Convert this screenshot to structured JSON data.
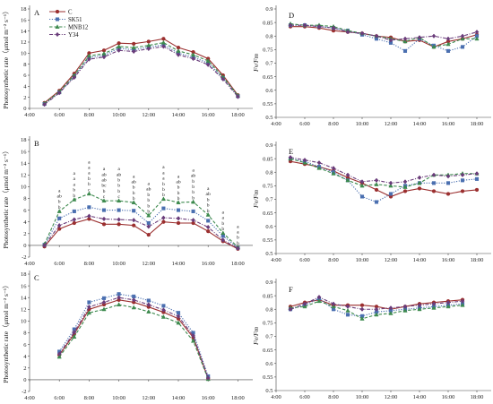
{
  "figure": {
    "legend": [
      "C",
      "SK51",
      "MNB12",
      "Y34"
    ],
    "colors": {
      "C": "#9b2f2f",
      "SK51": "#4a6fb0",
      "MNB12": "#3d8a4e",
      "Y34": "#6a3c7a"
    },
    "markers": {
      "C": "circle",
      "SK51": "square",
      "MNB12": "triangle",
      "Y34": "diamond"
    },
    "line_styles": {
      "C": "solid",
      "SK51": "dotted",
      "MNB12": "dashed",
      "Y34": "dashdot"
    }
  },
  "chart_data": [
    {
      "panel": "A",
      "type": "line",
      "ylabel": "Photosynthetic rate（μmol m⁻² s⁻¹）",
      "ylim": [
        0,
        18
      ],
      "yticks": [
        0,
        2,
        4,
        6,
        8,
        10,
        12,
        14,
        16,
        18
      ],
      "xlim": [
        4,
        19
      ],
      "xtick_labels": [
        "4:00",
        "6:00",
        "8:00",
        "10:00",
        "12:00",
        "14:00",
        "16:00",
        "18:00"
      ],
      "x": [
        5,
        6,
        7,
        8,
        9,
        10,
        11,
        12,
        13,
        14,
        15,
        16,
        17,
        18
      ],
      "series": [
        {
          "name": "C",
          "values": [
            1.0,
            3.2,
            6.3,
            10.0,
            10.5,
            11.8,
            11.7,
            12.1,
            12.6,
            11.0,
            10.2,
            9.0,
            6.0,
            2.4
          ]
        },
        {
          "name": "SK51",
          "values": [
            0.8,
            2.9,
            5.8,
            9.2,
            9.6,
            10.9,
            10.6,
            11.1,
            11.5,
            10.0,
            9.3,
            8.2,
            5.5,
            2.2
          ]
        },
        {
          "name": "MNB12",
          "values": [
            0.9,
            3.0,
            6.0,
            9.5,
            9.9,
            11.2,
            11.0,
            11.4,
            11.9,
            10.4,
            9.7,
            8.6,
            5.7,
            2.3
          ]
        },
        {
          "name": "Y34",
          "values": [
            0.7,
            2.8,
            5.6,
            8.9,
            9.3,
            10.5,
            10.3,
            10.8,
            11.2,
            9.7,
            9.0,
            7.9,
            5.3,
            2.1
          ]
        }
      ]
    },
    {
      "panel": "B",
      "type": "line",
      "ylabel": "Photosynthetic rate（μmol m⁻² s⁻¹）",
      "ylim": [
        -2,
        18
      ],
      "yticks": [
        -2,
        0,
        2,
        4,
        6,
        8,
        10,
        12,
        14,
        16,
        18
      ],
      "xlim": [
        4,
        19
      ],
      "xtick_labels": [
        "4:00",
        "6:00",
        "8:00",
        "10:00",
        "12:00",
        "14:00",
        "16:00",
        "18:00"
      ],
      "x": [
        5,
        6,
        7,
        8,
        9,
        10,
        11,
        12,
        13,
        14,
        15,
        16,
        17,
        18
      ],
      "series": [
        {
          "name": "C",
          "values": [
            -0.2,
            2.8,
            3.8,
            4.5,
            3.6,
            3.6,
            3.4,
            1.8,
            4.0,
            3.8,
            3.8,
            2.4,
            0.7,
            -0.6
          ]
        },
        {
          "name": "SK51",
          "values": [
            0.1,
            4.6,
            5.8,
            6.5,
            6.0,
            6.0,
            5.9,
            3.8,
            6.3,
            6.0,
            5.8,
            4.2,
            1.6,
            -0.4
          ]
        },
        {
          "name": "MNB12",
          "values": [
            0.2,
            5.8,
            7.8,
            8.8,
            7.6,
            7.6,
            7.3,
            5.1,
            7.9,
            7.3,
            7.4,
            5.2,
            2.1,
            -0.3
          ]
        },
        {
          "name": "Y34",
          "values": [
            0.0,
            3.4,
            4.4,
            5.0,
            4.5,
            4.4,
            4.3,
            3.2,
            4.7,
            4.6,
            4.3,
            3.1,
            0.9,
            -0.5
          ]
        }
      ],
      "significance_letters": [
        {
          "x": 6,
          "letters": [
            "a",
            "ab",
            "b",
            "b"
          ]
        },
        {
          "x": 7,
          "letters": [
            "a",
            "a",
            "a",
            "b",
            "b"
          ]
        },
        {
          "x": 8,
          "letters": [
            "a",
            "a",
            "a",
            "b",
            "b",
            "c"
          ]
        },
        {
          "x": 9,
          "letters": [
            "a",
            "ab",
            "ab",
            "bc",
            "b",
            "c"
          ]
        },
        {
          "x": 10,
          "letters": [
            "a",
            "ab",
            "b",
            "b",
            "b",
            "c"
          ]
        },
        {
          "x": 11,
          "letters": [
            "a",
            "ab",
            "b",
            "b",
            "b"
          ]
        },
        {
          "x": 12,
          "letters": [
            "a",
            "ab",
            "b",
            "b",
            "b",
            "b"
          ]
        },
        {
          "x": 13,
          "letters": [
            "a",
            "a",
            "a",
            "b",
            "b",
            "b"
          ]
        },
        {
          "x": 14,
          "letters": [
            "a",
            "ab",
            "b",
            "b",
            "b"
          ]
        },
        {
          "x": 15,
          "letters": [
            "a",
            "ab",
            "b",
            "b",
            "b",
            "b"
          ]
        },
        {
          "x": 16,
          "letters": [
            "a",
            "ab",
            "b",
            "b",
            "b"
          ]
        },
        {
          "x": 17,
          "letters": [
            "a",
            "a",
            "b",
            "b"
          ]
        },
        {
          "x": 18,
          "letters": [
            "a",
            "a",
            "b",
            "b"
          ]
        }
      ]
    },
    {
      "panel": "C",
      "type": "line",
      "ylabel": "Photosynthetic rate（μmol m⁻² s⁻¹）",
      "ylim": [
        -2,
        18
      ],
      "yticks": [
        -2,
        0,
        2,
        4,
        6,
        8,
        10,
        12,
        14,
        16,
        18
      ],
      "xlim": [
        4,
        19
      ],
      "xtick_labels": [
        "4:00",
        "6:00",
        "8:00",
        "10:00",
        "12:00",
        "14:00",
        "16:00",
        "18:00"
      ],
      "x": [
        6,
        7,
        8,
        9,
        10,
        11,
        12,
        13,
        14,
        15,
        16
      ],
      "series": [
        {
          "name": "C",
          "values": [
            4.2,
            7.8,
            12.0,
            12.8,
            13.6,
            13.2,
            12.4,
            11.5,
            10.4,
            7.2,
            0.2
          ]
        },
        {
          "name": "SK51",
          "values": [
            4.8,
            8.6,
            13.2,
            13.9,
            14.6,
            14.2,
            13.5,
            12.6,
            11.4,
            8.0,
            0.6
          ]
        },
        {
          "name": "MNB12",
          "values": [
            3.9,
            7.3,
            11.4,
            12.0,
            12.8,
            12.3,
            11.6,
            10.7,
            9.7,
            6.6,
            0.1
          ]
        },
        {
          "name": "Y34",
          "values": [
            4.4,
            8.1,
            12.4,
            13.2,
            14.0,
            13.6,
            12.8,
            11.9,
            10.8,
            7.5,
            0.3
          ]
        }
      ]
    },
    {
      "panel": "D",
      "type": "line",
      "ylabel": "Fv/Fm",
      "ylim": [
        0.5,
        0.9
      ],
      "yticks": [
        0.5,
        0.55,
        0.6,
        0.65,
        0.7,
        0.75,
        0.8,
        0.85,
        0.9
      ],
      "xlim": [
        4,
        19
      ],
      "xtick_labels": [
        "4:00",
        "6:00",
        "8:00",
        "10:00",
        "12:00",
        "14:00",
        "16:00",
        "18:00"
      ],
      "x": [
        5,
        6,
        7,
        8,
        9,
        10,
        11,
        12,
        13,
        14,
        15,
        16,
        17,
        18
      ],
      "series": [
        {
          "name": "C",
          "values": [
            0.835,
            0.835,
            0.83,
            0.82,
            0.815,
            0.81,
            0.8,
            0.795,
            0.78,
            0.785,
            0.76,
            0.78,
            0.79,
            0.805
          ]
        },
        {
          "name": "SK51",
          "values": [
            0.84,
            0.84,
            0.835,
            0.83,
            0.82,
            0.805,
            0.79,
            0.775,
            0.745,
            0.79,
            0.765,
            0.745,
            0.76,
            0.8
          ]
        },
        {
          "name": "MNB12",
          "values": [
            0.845,
            0.84,
            0.84,
            0.835,
            0.82,
            0.81,
            0.8,
            0.79,
            0.78,
            0.795,
            0.76,
            0.77,
            0.79,
            0.79
          ]
        },
        {
          "name": "Y34",
          "values": [
            0.84,
            0.84,
            0.835,
            0.83,
            0.815,
            0.81,
            0.8,
            0.785,
            0.79,
            0.795,
            0.8,
            0.79,
            0.8,
            0.815
          ]
        }
      ]
    },
    {
      "panel": "E",
      "type": "line",
      "ylabel": "Fv/Fm",
      "ylim": [
        0.5,
        0.9
      ],
      "yticks": [
        0.5,
        0.55,
        0.6,
        0.65,
        0.7,
        0.75,
        0.8,
        0.85,
        0.9
      ],
      "xlim": [
        4,
        19
      ],
      "xtick_labels": [
        "4:00",
        "6:00",
        "8:00",
        "10:00",
        "12:00",
        "14:00",
        "16:00",
        "18:00"
      ],
      "x": [
        5,
        6,
        7,
        8,
        9,
        10,
        11,
        12,
        13,
        14,
        15,
        16,
        17,
        18
      ],
      "series": [
        {
          "name": "C",
          "values": [
            0.84,
            0.83,
            0.82,
            0.805,
            0.78,
            0.76,
            0.735,
            0.71,
            0.73,
            0.74,
            0.73,
            0.72,
            0.73,
            0.735
          ]
        },
        {
          "name": "SK51",
          "values": [
            0.85,
            0.84,
            0.82,
            0.8,
            0.77,
            0.71,
            0.69,
            0.72,
            0.75,
            0.76,
            0.76,
            0.76,
            0.77,
            0.775
          ]
        },
        {
          "name": "MNB12",
          "values": [
            0.85,
            0.835,
            0.815,
            0.795,
            0.77,
            0.75,
            0.755,
            0.75,
            0.745,
            0.76,
            0.79,
            0.79,
            0.795,
            0.795
          ]
        },
        {
          "name": "Y34",
          "values": [
            0.855,
            0.845,
            0.835,
            0.815,
            0.79,
            0.765,
            0.77,
            0.76,
            0.765,
            0.78,
            0.79,
            0.785,
            0.79,
            0.795
          ]
        }
      ]
    },
    {
      "panel": "F",
      "type": "line",
      "ylabel": "Fv/Fm",
      "ylim": [
        0.5,
        0.9
      ],
      "yticks": [
        0.5,
        0.55,
        0.6,
        0.65,
        0.7,
        0.75,
        0.8,
        0.85,
        0.9
      ],
      "xlim": [
        4,
        19
      ],
      "xtick_labels": [
        "4:00",
        "6:00",
        "8:00",
        "10:00",
        "12:00",
        "14:00",
        "16:00",
        "18:00"
      ],
      "x": [
        5,
        6,
        7,
        8,
        9,
        10,
        11,
        12,
        13,
        14,
        15,
        16,
        17
      ],
      "series": [
        {
          "name": "C",
          "values": [
            0.81,
            0.825,
            0.835,
            0.815,
            0.815,
            0.815,
            0.81,
            0.8,
            0.81,
            0.82,
            0.825,
            0.83,
            0.835
          ]
        },
        {
          "name": "SK51",
          "values": [
            0.8,
            0.815,
            0.84,
            0.8,
            0.78,
            0.775,
            0.79,
            0.795,
            0.8,
            0.805,
            0.81,
            0.815,
            0.82
          ]
        },
        {
          "name": "MNB12",
          "values": [
            0.805,
            0.81,
            0.83,
            0.81,
            0.795,
            0.765,
            0.78,
            0.785,
            0.795,
            0.8,
            0.805,
            0.81,
            0.815
          ]
        },
        {
          "name": "Y34",
          "values": [
            0.8,
            0.82,
            0.845,
            0.82,
            0.81,
            0.8,
            0.8,
            0.805,
            0.81,
            0.815,
            0.82,
            0.825,
            0.83
          ]
        }
      ]
    }
  ]
}
